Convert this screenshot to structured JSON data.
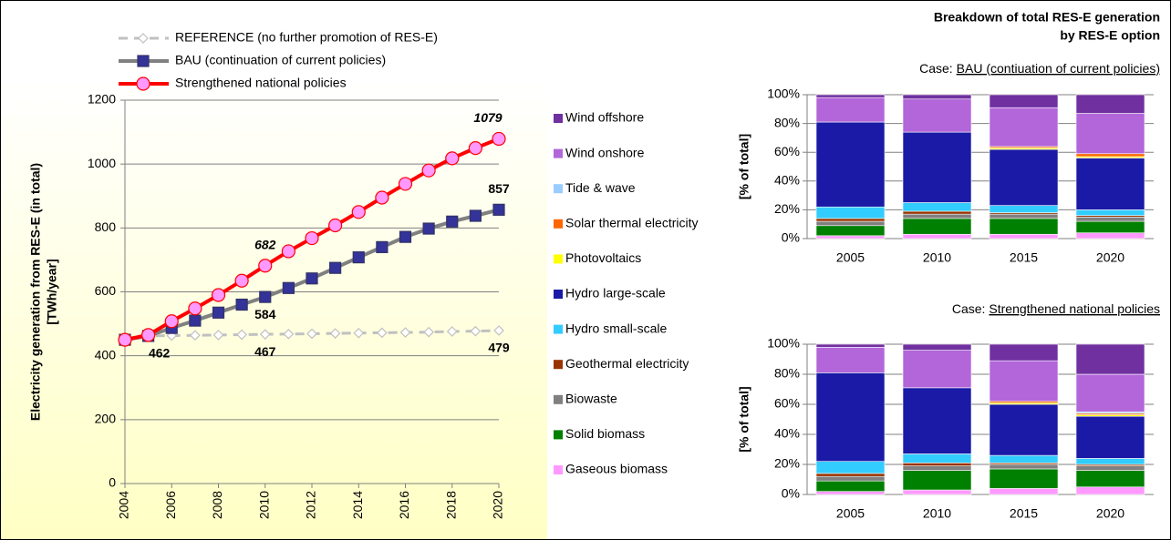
{
  "chart_data": [
    {
      "type": "line",
      "ylabel": [
        "Electricity generation from RES-E (in total)",
        "[TWh/year]"
      ],
      "x": [
        2004,
        2005,
        2006,
        2007,
        2008,
        2009,
        2010,
        2011,
        2012,
        2013,
        2014,
        2015,
        2016,
        2017,
        2018,
        2019,
        2020
      ],
      "xlim": [
        2004,
        2020
      ],
      "xticks": [
        2004,
        2006,
        2008,
        2010,
        2012,
        2014,
        2016,
        2018,
        2020
      ],
      "ylim": [
        0,
        1200
      ],
      "yticks": [
        0,
        200,
        400,
        600,
        800,
        1000,
        1200
      ],
      "grid": true,
      "series": [
        {
          "name": "REFERENCE (no further promotion of RES-E)",
          "color": "#c0c0c0",
          "marker": "diamond",
          "marker_color": "#ffffff",
          "label_color": "#c0c0c0",
          "dash": true,
          "values": [
            450,
            462,
            463,
            464,
            465,
            466,
            467,
            468,
            469,
            470,
            471,
            472,
            473,
            474,
            476,
            477,
            479
          ],
          "value_labels": [
            null,
            null,
            null,
            null,
            null,
            null,
            "467",
            null,
            null,
            null,
            null,
            null,
            null,
            null,
            null,
            null,
            "479"
          ]
        },
        {
          "name": "BAU (continuation of current policies)",
          "color": "#808080",
          "marker": "square",
          "marker_color": "#333399",
          "label_color": "#404040",
          "dash": false,
          "values": [
            450,
            462,
            487,
            510,
            535,
            560,
            584,
            612,
            642,
            675,
            708,
            740,
            772,
            798,
            820,
            838,
            857
          ],
          "value_labels": [
            null,
            "462",
            null,
            null,
            null,
            null,
            "584",
            null,
            null,
            null,
            null,
            null,
            null,
            null,
            null,
            null,
            "857"
          ]
        },
        {
          "name": "Strengthened national policies",
          "color": "#ff0000",
          "marker": "circle",
          "marker_color": "#ff99ff",
          "label_color": "#ff0000",
          "dash": false,
          "values": [
            450,
            465,
            508,
            548,
            590,
            635,
            682,
            727,
            768,
            808,
            850,
            895,
            938,
            980,
            1018,
            1050,
            1079
          ],
          "value_labels": [
            null,
            null,
            null,
            null,
            null,
            null,
            "682",
            null,
            null,
            null,
            null,
            null,
            null,
            null,
            null,
            null,
            "1079"
          ]
        }
      ]
    },
    {
      "type": "stacked_bar",
      "title": [
        "Breakdown of total RES-E generation",
        "by RES-E option"
      ],
      "subtitle": "Case:",
      "case": "BAU (contiuation of current policies)",
      "ylabel": "[% of total]",
      "categories": [
        "2005",
        "2010",
        "2015",
        "2020"
      ],
      "ylim": [
        0,
        100
      ],
      "yticks": [
        {
          "value": 0,
          "label": "0%"
        },
        {
          "value": 20,
          "label": "20%"
        },
        {
          "value": 40,
          "label": "40%"
        },
        {
          "value": 60,
          "label": "60%"
        },
        {
          "value": 80,
          "label": "80%"
        },
        {
          "value": 100,
          "label": "100%"
        }
      ],
      "grid": true,
      "series": [
        {
          "name": "Wind offshore",
          "color": "#7030a0",
          "values": [
            2,
            3,
            9,
            13
          ]
        },
        {
          "name": "Wind onshore",
          "color": "#b266d9",
          "values": [
            17,
            23,
            27,
            28
          ]
        },
        {
          "name": "Tide & wave",
          "color": "#99ccff",
          "values": [
            0,
            0,
            0,
            0
          ]
        },
        {
          "name": "Solar thermal electricity",
          "color": "#ff6600",
          "values": [
            0,
            0,
            1,
            2
          ]
        },
        {
          "name": "Photovoltaics",
          "color": "#ffff00",
          "values": [
            0,
            0,
            1,
            1
          ]
        },
        {
          "name": "Hydro large-scale",
          "color": "#1a1aa6",
          "values": [
            59,
            49,
            39,
            36
          ]
        },
        {
          "name": "Hydro small-scale",
          "color": "#33ccff",
          "values": [
            8,
            6,
            5,
            4
          ]
        },
        {
          "name": "Geothermal electricity",
          "color": "#993300",
          "values": [
            2,
            2,
            1,
            1
          ]
        },
        {
          "name": "Biowaste",
          "color": "#808080",
          "values": [
            3,
            3,
            3,
            3
          ]
        },
        {
          "name": "Solid biomass",
          "color": "#008000",
          "values": [
            7,
            11,
            11,
            8
          ]
        },
        {
          "name": "Gaseous biomass",
          "color": "#ff99ff",
          "values": [
            2,
            3,
            3,
            4
          ]
        }
      ]
    },
    {
      "type": "stacked_bar",
      "subtitle": "Case:",
      "case": "Strengthened national policies",
      "ylabel": "[% of total]",
      "categories": [
        "2005",
        "2010",
        "2015",
        "2020"
      ],
      "ylim": [
        0,
        100
      ],
      "yticks": [
        {
          "value": 0,
          "label": "0%"
        },
        {
          "value": 20,
          "label": "20%"
        },
        {
          "value": 40,
          "label": "40%"
        },
        {
          "value": 60,
          "label": "60%"
        },
        {
          "value": 80,
          "label": "80%"
        },
        {
          "value": 100,
          "label": "100%"
        }
      ],
      "grid": true,
      "series": [
        {
          "values": [
            2,
            4,
            11,
            20
          ]
        },
        {
          "values": [
            17,
            25,
            27,
            25
          ]
        },
        {
          "values": [
            0,
            0,
            0,
            1
          ]
        },
        {
          "values": [
            0,
            0,
            1,
            1
          ]
        },
        {
          "values": [
            0,
            0,
            1,
            1
          ]
        },
        {
          "values": [
            59,
            44,
            34,
            28
          ]
        },
        {
          "values": [
            8,
            6,
            5,
            4
          ]
        },
        {
          "values": [
            2,
            2,
            1,
            1
          ]
        },
        {
          "values": [
            3,
            3,
            3,
            3
          ]
        },
        {
          "values": [
            7,
            13,
            13,
            11
          ]
        },
        {
          "values": [
            2,
            3,
            4,
            5
          ]
        }
      ]
    }
  ]
}
